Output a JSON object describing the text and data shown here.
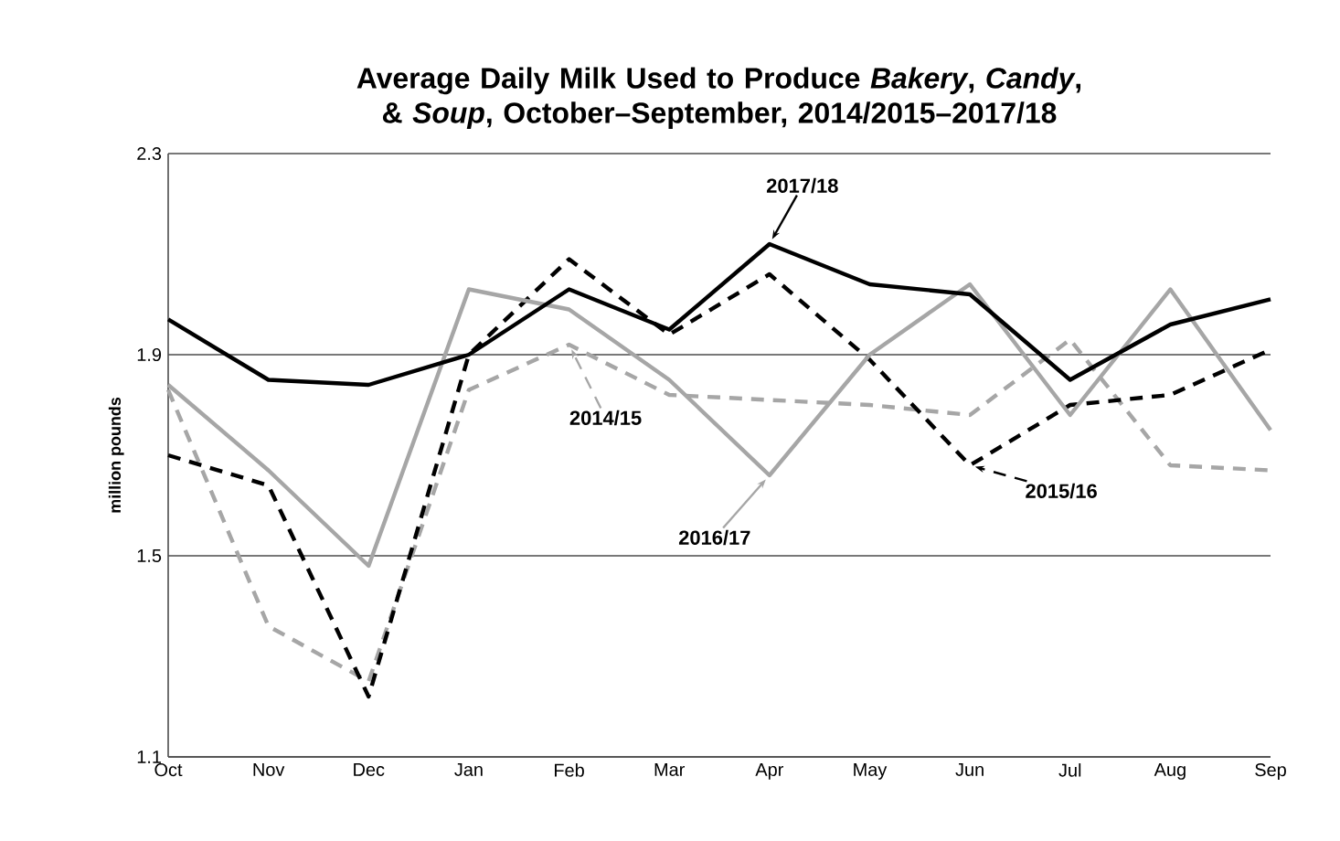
{
  "chart_data": {
    "type": "line",
    "title": "Average Daily Milk Used to Produce *Bakery*, *Candy*, & *Soup*, October–September, 2014/2015–2017/18",
    "ylabel": "million pounds",
    "categories": [
      "Oct",
      "Nov",
      "Dec",
      "Jan",
      "Feb",
      "Mar",
      "Apr",
      "May",
      "Jun",
      "Jul",
      "Aug",
      "Sep"
    ],
    "series": [
      {
        "name": "2014/15",
        "color": "#a6a6a6",
        "line_style": "dashed",
        "values": [
          1.83,
          1.36,
          1.25,
          1.83,
          1.92,
          1.82,
          1.81,
          1.8,
          1.78,
          1.93,
          1.68,
          1.67
        ]
      },
      {
        "name": "2015/16",
        "color": "#000000",
        "line_style": "dashed",
        "values": [
          1.7,
          1.64,
          1.22,
          1.9,
          2.09,
          1.94,
          2.06,
          1.89,
          1.68,
          1.8,
          1.82,
          1.91
        ]
      },
      {
        "name": "2016/17",
        "color": "#a6a6a6",
        "line_style": "solid",
        "values": [
          1.84,
          1.67,
          1.48,
          2.03,
          1.99,
          1.85,
          1.66,
          1.9,
          2.04,
          1.78,
          2.03,
          1.75
        ]
      },
      {
        "name": "2017/18",
        "color": "#000000",
        "line_style": "solid",
        "values": [
          1.97,
          1.85,
          1.84,
          1.9,
          2.03,
          1.95,
          2.12,
          2.04,
          2.02,
          1.85,
          1.96,
          2.01
        ]
      }
    ],
    "ylim": [
      1.1,
      2.3
    ],
    "yticks": [
      1.1,
      1.5,
      1.9,
      2.3
    ],
    "grid": "y",
    "marker": "none"
  }
}
